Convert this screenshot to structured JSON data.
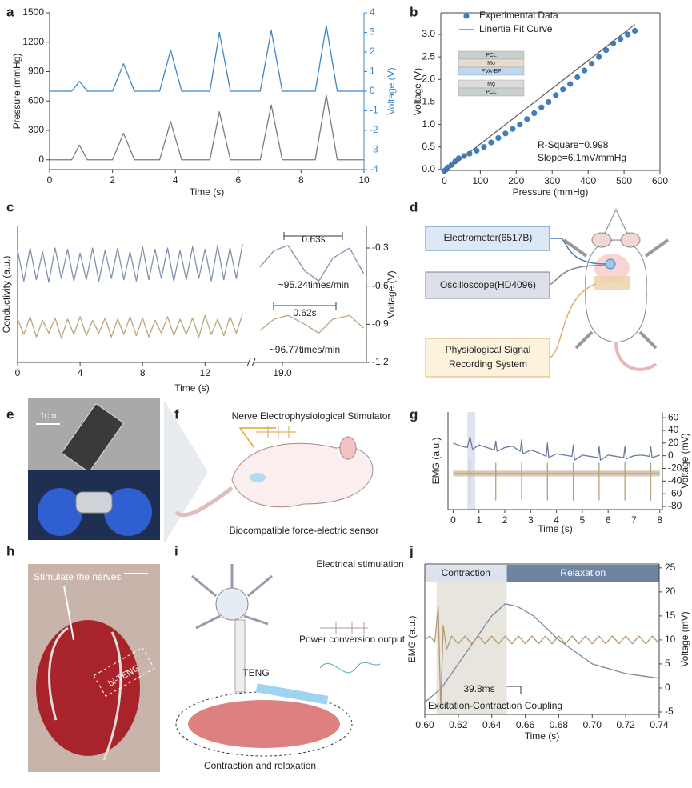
{
  "panel_labels": [
    "a",
    "b",
    "c",
    "d",
    "e",
    "f",
    "g",
    "h",
    "i",
    "j"
  ],
  "chart_data": [
    {
      "type": "line",
      "xlabel": "Time (s)",
      "ylabel": "Pressure (mmHg)",
      "y2label": "Voltage (V)",
      "xlim": [
        0,
        10
      ],
      "xticks": [
        0,
        2,
        4,
        6,
        8,
        10
      ],
      "ylim": [
        -100,
        1500
      ],
      "yticks": [
        0,
        300,
        600,
        900,
        1200,
        1500
      ],
      "y2lim": [
        -4,
        4
      ],
      "y2ticks": [
        -4,
        -3,
        -2,
        -1,
        0,
        1,
        2,
        3,
        4
      ],
      "y2_color": "#3d85c6",
      "x": [
        0,
        0.7,
        0.95,
        1.2,
        2.0,
        2.35,
        2.7,
        3.5,
        3.85,
        4.2,
        5.1,
        5.4,
        5.75,
        6.7,
        7.05,
        7.4,
        8.45,
        8.8,
        9.15,
        10
      ],
      "series": [
        {
          "color": "#7a7a7a",
          "values": [
            0,
            0,
            150,
            0,
            0,
            270,
            0,
            0,
            390,
            0,
            0,
            490,
            0,
            0,
            560,
            0,
            0,
            660,
            0,
            0
          ]
        },
        {
          "color": "#3d85c6",
          "axis": "y2",
          "values": [
            0,
            0,
            0.5,
            0,
            0,
            1.4,
            0,
            0,
            2.1,
            0,
            0,
            3.0,
            0,
            0,
            3.1,
            0,
            0,
            3.35,
            0,
            0
          ]
        }
      ]
    },
    {
      "type": "scatter",
      "xlabel": "Pressure (mmHg)",
      "ylabel": "Voltage (V)",
      "xlim": [
        -10,
        600
      ],
      "xticks": [
        0,
        100,
        200,
        300,
        400,
        500,
        600
      ],
      "ylim": [
        -0.02,
        3.48
      ],
      "yticks": [
        {
          "value": 0,
          "label": "0.0"
        },
        0.5,
        {
          "value": 1,
          "label": "1.0"
        },
        1.5,
        {
          "value": 2,
          "label": "2.0"
        },
        2.5,
        {
          "value": 3,
          "label": "3.0"
        }
      ],
      "legend": "upper left",
      "annotations": [
        "R-Square=0.998",
        "Slope=6.1mV/mmHg"
      ],
      "inset_layers": [
        "PCL",
        "Mo",
        "PVA-BF",
        "Mg",
        "PCL"
      ],
      "series": [
        {
          "name": "Experimental Data",
          "color": "#3d7ebf",
          "marker": "circle",
          "x": [
            0,
            5,
            10,
            20,
            30,
            40,
            55,
            70,
            90,
            110,
            130,
            150,
            170,
            190,
            210,
            230,
            250,
            270,
            290,
            310,
            330,
            350,
            370,
            390,
            410,
            430,
            450,
            470,
            490,
            510,
            530
          ],
          "values": [
            -0.03,
            0,
            0.05,
            0.1,
            0.18,
            0.25,
            0.3,
            0.35,
            0.42,
            0.5,
            0.6,
            0.7,
            0.8,
            0.9,
            1.0,
            1.12,
            1.25,
            1.38,
            1.5,
            1.65,
            1.78,
            1.9,
            2.05,
            2.2,
            2.35,
            2.5,
            2.65,
            2.8,
            2.9,
            3.0,
            3.08
          ]
        },
        {
          "name": "Linertia Fit Curve",
          "color": "#666666",
          "x": [
            0,
            530
          ],
          "values": [
            -0.05,
            3.22
          ]
        }
      ]
    },
    {
      "type": "line",
      "xlabel": "Time (s)",
      "ylabel": "Conductivity (a.u.)",
      "xlim": [
        0,
        14.8
      ],
      "xticks": [
        0,
        4,
        8,
        12
      ],
      "ylim": [
        -1.2,
        -0.13
      ],
      "x": [
        0,
        0.4,
        0.8,
        1.2,
        1.6,
        2,
        2.4,
        2.8,
        3.2,
        3.6,
        4,
        4.4,
        4.8,
        5.2,
        5.6,
        6,
        6.4,
        6.8,
        7.2,
        7.6,
        8,
        8.4,
        8.8,
        9.2,
        9.6,
        10,
        10.4,
        10.8,
        11.2,
        11.6,
        12,
        12.4,
        12.8,
        13.2,
        13.6,
        14,
        14.4
      ],
      "series": [
        {
          "color": "#7f93ad",
          "values": [
            -0.32,
            -0.56,
            -0.3,
            -0.55,
            -0.33,
            -0.57,
            -0.3,
            -0.54,
            -0.31,
            -0.56,
            -0.34,
            -0.55,
            -0.3,
            -0.56,
            -0.32,
            -0.54,
            -0.3,
            -0.55,
            -0.33,
            -0.56,
            -0.29,
            -0.55,
            -0.31,
            -0.54,
            -0.3,
            -0.56,
            -0.32,
            -0.55,
            -0.29,
            -0.54,
            -0.31,
            -0.56,
            -0.28,
            -0.55,
            -0.3,
            -0.54,
            -0.27
          ]
        },
        {
          "color": "#bfa37c",
          "values": [
            -0.86,
            -0.98,
            -0.84,
            -1.0,
            -0.87,
            -0.97,
            -0.85,
            -1.01,
            -0.86,
            -0.98,
            -0.84,
            -0.99,
            -0.87,
            -0.97,
            -0.85,
            -1.0,
            -0.86,
            -0.98,
            -0.84,
            -0.99,
            -0.85,
            -1.0,
            -0.87,
            -0.97,
            -0.84,
            -0.99,
            -0.86,
            -0.98,
            -0.85,
            -1.0,
            -0.83,
            -0.98,
            -0.86,
            -0.99,
            -0.84,
            -0.97,
            -0.82
          ]
        }
      ]
    },
    {
      "type": "line",
      "ylabel": "Voltage (V)",
      "yaxis_side": "right",
      "xlim": [
        18,
        22
      ],
      "xticks": [
        {
          "value": 19,
          "label": "19.0"
        }
      ],
      "ylim": [
        -1.2,
        -0.13
      ],
      "yticks": [
        -0.3,
        -0.6,
        -0.9,
        -1.2
      ],
      "annotations": [
        "0.63s",
        "~95.24times/min",
        "0.62s",
        "~96.77times/min"
      ],
      "x": [
        18.2,
        18.7,
        19.2,
        19.8,
        20.3,
        20.8,
        21.4,
        21.9
      ],
      "series": [
        {
          "color": "#7f93ad",
          "values": [
            -0.45,
            -0.32,
            -0.28,
            -0.48,
            -0.56,
            -0.38,
            -0.3,
            -0.5
          ]
        },
        {
          "color": "#bfa37c",
          "values": [
            -0.95,
            -0.86,
            -0.83,
            -0.9,
            -0.97,
            -0.86,
            -0.83,
            -0.93
          ]
        }
      ]
    },
    {
      "type": "line",
      "xlabel": "Time (s)",
      "ylabel": "Voltage (mV)",
      "y_left_label": "EMG (a.u.)",
      "yaxis_side": "right",
      "xlim": [
        -0.2,
        8.1
      ],
      "xticks": [
        0,
        1,
        2,
        3,
        4,
        5,
        6,
        7,
        8
      ],
      "ylim": [
        -85,
        69
      ],
      "yticks": [
        60,
        40,
        20,
        0,
        -20,
        -40,
        -60,
        -80
      ],
      "highlight": [
        0.55,
        0.85
      ],
      "series": [
        {
          "color": "#6b7d99",
          "x": [
            0,
            0.3,
            0.55,
            0.65,
            0.75,
            1.0,
            1.3,
            1.6,
            1.65,
            1.7,
            2.0,
            2.3,
            2.6,
            2.65,
            2.7,
            3.0,
            3.3,
            3.6,
            3.65,
            3.7,
            4.0,
            4.3,
            4.6,
            4.65,
            4.7,
            5.0,
            5.3,
            5.6,
            5.65,
            5.7,
            6.0,
            6.3,
            6.6,
            6.65,
            6.7,
            7.0,
            7.3,
            7.6,
            7.65,
            7.7,
            8.0
          ],
          "values": [
            20,
            15,
            13,
            30,
            10,
            17,
            13,
            9,
            23,
            7,
            13,
            15,
            7,
            25,
            3,
            9,
            5,
            -1,
            20,
            -3,
            3,
            1,
            -1,
            17,
            -7,
            1,
            -1,
            -3,
            15,
            -7,
            1,
            -1,
            -3,
            15,
            -5,
            0,
            1,
            -1,
            15,
            -3,
            1
          ]
        },
        {
          "color": "#c9b596",
          "band": true,
          "x": [
            0,
            8
          ],
          "values": [
            -28,
            -28
          ]
        },
        {
          "color": "#b89f7e",
          "x": [
            0,
            0.65,
            0.65,
            0.65,
            0.65,
            1.65,
            1.65,
            1.65,
            1.65,
            2.65,
            2.65,
            2.65,
            2.65,
            3.65,
            3.65,
            3.65,
            3.65,
            4.65,
            4.65,
            4.65,
            4.65,
            5.65,
            5.65,
            5.65,
            5.65,
            6.65,
            6.65,
            6.65,
            6.65,
            7.65,
            7.65,
            7.65,
            7.65,
            8
          ],
          "values": [
            -28,
            -28,
            -8,
            -74,
            -28,
            -28,
            -12,
            -70,
            -28,
            -28,
            -10,
            -70,
            -28,
            -28,
            -12,
            -70,
            -28,
            -28,
            -12,
            -70,
            -28,
            -28,
            -12,
            -70,
            -28,
            -28,
            -10,
            -70,
            -28,
            -28,
            -12,
            -70,
            -28,
            -28
          ]
        }
      ]
    },
    {
      "type": "line",
      "xlabel": "Time (s)",
      "ylabel": "Voltage (mV)",
      "y_left_label": "EMG (a.u.)",
      "yaxis_side": "right",
      "xlim": [
        0.6,
        0.74
      ],
      "xticks": [
        {
          "value": 0.6,
          "label": "0.60"
        },
        0.62,
        0.64,
        0.66,
        0.68,
        {
          "value": 0.7,
          "label": "0.70"
        },
        0.72,
        0.74
      ],
      "ylim": [
        -5.5,
        25.8
      ],
      "yticks": [
        -5,
        0,
        5,
        10,
        15,
        20,
        25
      ],
      "phases": [
        {
          "label": "Contraction",
          "start": 0.6,
          "end": 0.649,
          "color": "#dce3ec"
        },
        {
          "label": "Relaxation",
          "start": 0.649,
          "end": 0.74,
          "color": "#6d84a3"
        }
      ],
      "shaded": [
        0.607,
        0.649
      ],
      "annotations": [
        "39.8ms",
        "Excitation-Contraction Coupling"
      ],
      "series": [
        {
          "color": "#7a8aa3",
          "x": [
            0.6,
            0.61,
            0.62,
            0.63,
            0.64,
            0.648,
            0.655,
            0.665,
            0.68,
            0.7,
            0.72,
            0.74
          ],
          "values": [
            -3,
            0,
            5,
            10,
            15,
            17.5,
            17,
            15,
            10,
            5,
            3,
            2
          ]
        },
        {
          "color": "#b39872",
          "x": [
            0.6,
            0.603,
            0.606,
            0.608,
            0.6095,
            0.611,
            0.613,
            0.616,
            0.62,
            0.624,
            0.628,
            0.632,
            0.636,
            0.64,
            0.644,
            0.648,
            0.652,
            0.656,
            0.66,
            0.664,
            0.668,
            0.672,
            0.676,
            0.68,
            0.684,
            0.688,
            0.692,
            0.696,
            0.7,
            0.704,
            0.708,
            0.712,
            0.716,
            0.72,
            0.724,
            0.728,
            0.732,
            0.736,
            0.74
          ],
          "values": [
            10,
            10.8,
            9.5,
            17,
            -4,
            13,
            8,
            10.8,
            9.2,
            10.8,
            9.2,
            10.8,
            9.2,
            10.8,
            9.2,
            10.8,
            9.2,
            10.8,
            9.2,
            10.8,
            9.2,
            10.8,
            9.2,
            10.8,
            9.2,
            10.8,
            9.2,
            10.8,
            9.2,
            10.8,
            9.2,
            10.8,
            9.2,
            10.8,
            9.2,
            10.8,
            9.2,
            10.8,
            9.2
          ]
        }
      ]
    }
  ],
  "diagram_d": {
    "boxes": [
      "Electrometer(6517B)",
      "Oscilloscope(HD4096)",
      [
        "Physiological Signal",
        "Recording System"
      ]
    ]
  },
  "photo_e": {
    "scale_bar": "1cm"
  },
  "diagram_f": {
    "title": "Nerve Electrophysiological Stimulator",
    "caption": "Biocompatible force-electric sensor"
  },
  "photo_h": {
    "label": "Stimulate the nerves",
    "device": "bi-TENG"
  },
  "diagram_i": {
    "stimulation": "Electrical stimulation",
    "output": "Power conversion output",
    "device": "TENG",
    "caption": "Contraction and relaxation"
  }
}
